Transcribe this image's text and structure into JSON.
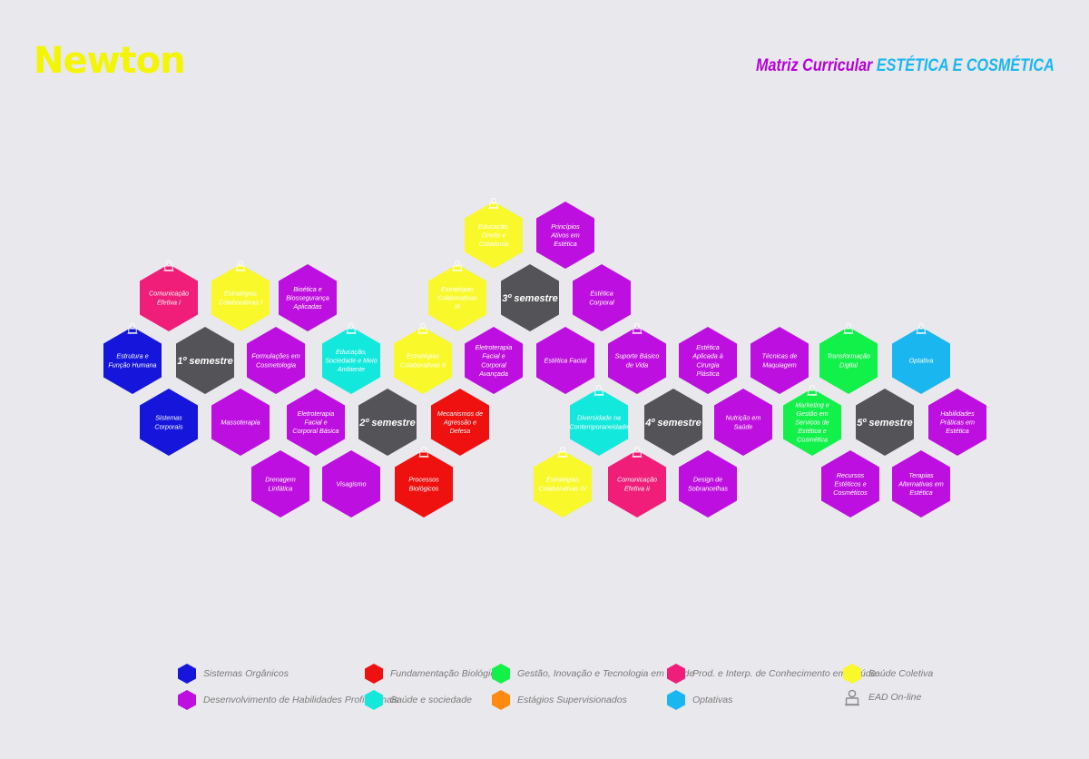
{
  "brand": {
    "logo": "Newton"
  },
  "header": {
    "title_prefix": "Matriz Curricular",
    "title_course": "ESTÉTICA E COSMÉTICA"
  },
  "colors": {
    "sistemas": "#1515dc",
    "habilidades": "#bd0fe0",
    "fundamentacao": "#ef1010",
    "saude_sociedade": "#12e8dc",
    "gestao": "#12f04a",
    "estagios": "#ff8a12",
    "prod": "#f01e79",
    "optativas": "#1ab6f0",
    "saude_coletiva": "#f8f82a",
    "semestre": "#545458",
    "ead": "#8a8a8a"
  },
  "hexes": [
    {
      "label": "Estrutura e Função Humana",
      "category": "sistemas",
      "ead": true
    },
    {
      "label": "Sistemas Corporais",
      "category": "sistemas",
      "ead": false
    },
    {
      "label": "Comunicação Efetiva I",
      "category": "prod",
      "ead": true
    },
    {
      "label": "1º semestre",
      "category": "semestre",
      "ead": false
    },
    {
      "label": "Massoterapia",
      "category": "habilidades",
      "ead": false
    },
    {
      "label": "Estratégias Colaborativas I",
      "category": "saude_coletiva",
      "ead": true
    },
    {
      "label": "Formulações em Cosmetologia",
      "category": "habilidades",
      "ead": false
    },
    {
      "label": "Drenagem Linfática",
      "category": "habilidades",
      "ead": false
    },
    {
      "label": "Bioética e Biossegurança Aplicadas",
      "category": "habilidades",
      "ead": false
    },
    {
      "label": "Eletroterapia Facial e Corporal Básica",
      "category": "habilidades",
      "ead": false
    },
    {
      "label": "Educação, Sociedade e Meio Ambiente",
      "category": "saude_sociedade",
      "ead": true
    },
    {
      "label": "Visagismo",
      "category": "habilidades",
      "ead": false
    },
    {
      "label": "2º semestre",
      "category": "semestre",
      "ead": false
    },
    {
      "label": "Estratégias Colaborativas II",
      "category": "saude_coletiva",
      "ead": true
    },
    {
      "label": "Processos Biológicos",
      "category": "fundamentacao",
      "ead": true
    },
    {
      "label": "Estratégias Colaborativas III",
      "category": "saude_coletiva",
      "ead": true
    },
    {
      "label": "Mecanismos de Agressão e Defesa",
      "category": "fundamentacao",
      "ead": false
    },
    {
      "label": "Educação, Direito e Cidadania",
      "category": "saude_coletiva",
      "ead": true
    },
    {
      "label": "Eletroterapia Facial e Corporal Avançada",
      "category": "habilidades",
      "ead": false
    },
    {
      "label": "3º semestre",
      "category": "semestre",
      "ead": false
    },
    {
      "label": "Princípios Ativos em Estética",
      "category": "habilidades",
      "ead": false
    },
    {
      "label": "Estética Facial",
      "category": "habilidades",
      "ead": false
    },
    {
      "label": "Estética Corporal",
      "category": "habilidades",
      "ead": false
    },
    {
      "label": "Estratégias Colaborativas IV",
      "category": "saude_coletiva",
      "ead": true
    },
    {
      "label": "Diversidade na Contemporaneidade",
      "category": "saude_sociedade",
      "ead": true
    },
    {
      "label": "Suporte Básico de Vida",
      "category": "habilidades",
      "ead": true
    },
    {
      "label": "Comunicação Efetiva II",
      "category": "prod",
      "ead": true
    },
    {
      "label": "4º semestre",
      "category": "semestre",
      "ead": false
    },
    {
      "label": "Estética Aplicada à Cirurgia Plástica",
      "category": "habilidades",
      "ead": false
    },
    {
      "label": "Design de Sobrancelhas",
      "category": "habilidades",
      "ead": false
    },
    {
      "label": "Nutrição em Saúde",
      "category": "habilidades",
      "ead": false
    },
    {
      "label": "Técnicas de Maquiagem",
      "category": "habilidades",
      "ead": false
    },
    {
      "label": "Marketing e Gestão em Serviços de Estética e Cosmética",
      "category": "gestao",
      "ead": true
    },
    {
      "label": "Transformação Digital",
      "category": "gestao",
      "ead": true
    },
    {
      "label": "Recursos Estéticos e Cosméticos",
      "category": "habilidades",
      "ead": false
    },
    {
      "label": "5º semestre",
      "category": "semestre",
      "ead": false
    },
    {
      "label": "Optativa",
      "category": "optativas",
      "ead": true
    },
    {
      "label": "Terapias Alternativas em Estética",
      "category": "habilidades",
      "ead": false
    },
    {
      "label": "Habilidades Práticas em Estética",
      "category": "habilidades",
      "ead": false
    }
  ],
  "legend": [
    {
      "label": "Sistemas Orgânicos",
      "category": "sistemas"
    },
    {
      "label": "Desenvolvimento de Habilidades Profissionais",
      "category": "habilidades"
    },
    {
      "label": "Fundamentação Biológica",
      "category": "fundamentacao"
    },
    {
      "label": "Saúde e sociedade",
      "category": "saude_sociedade"
    },
    {
      "label": "Gestão, Inovação e Tecnologia em Saúde",
      "category": "gestao"
    },
    {
      "label": "Estágios Supervisionados",
      "category": "estagios"
    },
    {
      "label": "Prod. e Interp. de Conhecimento em Saúde",
      "category": "prod"
    },
    {
      "label": "Optativas",
      "category": "optativas"
    },
    {
      "label": "Saúde Coletiva",
      "category": "saude_coletiva"
    },
    {
      "label": "EAD On-line",
      "category": "ead"
    }
  ]
}
